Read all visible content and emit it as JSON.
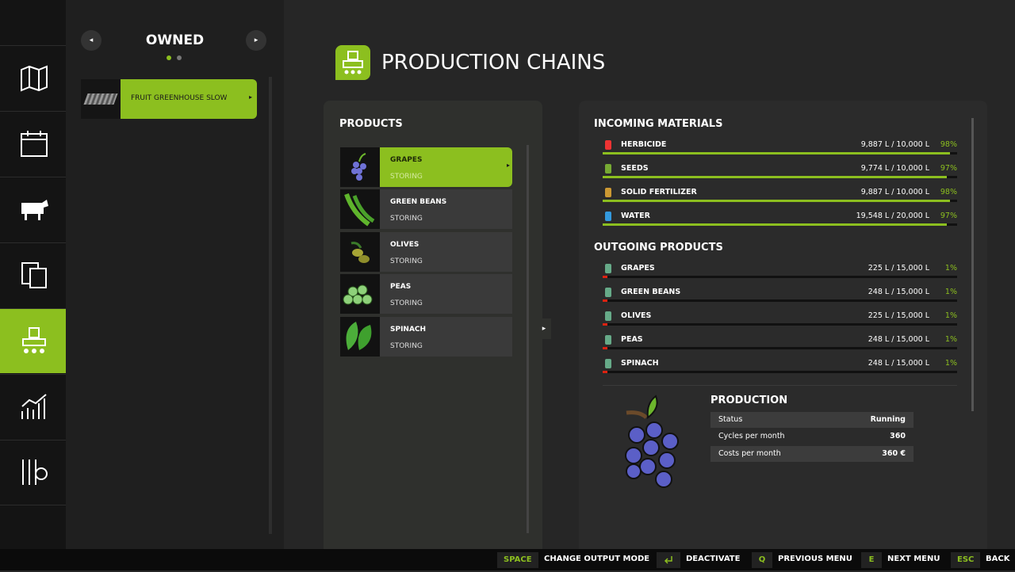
{
  "sidebar": {
    "header": "OWNED",
    "items": [
      "FRUIT GREENHOUSE SLOW"
    ]
  },
  "title": "PRODUCTION CHAINS",
  "products": {
    "heading": "PRODUCTS",
    "items": [
      {
        "name": "GRAPES",
        "status": "STORING"
      },
      {
        "name": "GREEN BEANS",
        "status": "STORING"
      },
      {
        "name": "OLIVES",
        "status": "STORING"
      },
      {
        "name": "PEAS",
        "status": "STORING"
      },
      {
        "name": "SPINACH",
        "status": "STORING"
      }
    ]
  },
  "incoming": {
    "heading": "INCOMING MATERIALS",
    "items": [
      {
        "name": "HERBICIDE",
        "amount": "9,887 L / 10,000 L",
        "percent": "98%"
      },
      {
        "name": "SEEDS",
        "amount": "9,774 L / 10,000 L",
        "percent": "97%"
      },
      {
        "name": "SOLID FERTILIZER",
        "amount": "9,887 L / 10,000 L",
        "percent": "98%"
      },
      {
        "name": "WATER",
        "amount": "19,548 L / 20,000 L",
        "percent": "97%"
      }
    ]
  },
  "outgoing": {
    "heading": "OUTGOING PRODUCTS",
    "items": [
      {
        "name": "GRAPES",
        "amount": "225 L / 15,000 L",
        "percent": "1%"
      },
      {
        "name": "GREEN BEANS",
        "amount": "248 L / 15,000 L",
        "percent": "1%"
      },
      {
        "name": "OLIVES",
        "amount": "225 L / 15,000 L",
        "percent": "1%"
      },
      {
        "name": "PEAS",
        "amount": "248 L / 15,000 L",
        "percent": "1%"
      },
      {
        "name": "SPINACH",
        "amount": "248 L / 15,000 L",
        "percent": "1%"
      }
    ]
  },
  "production": {
    "heading": "PRODUCTION",
    "rows": [
      [
        "Status",
        "Running"
      ],
      [
        "Cycles per month",
        "360"
      ],
      [
        "Costs per month",
        "360 €"
      ]
    ]
  },
  "footer": [
    {
      "key": "SPACE",
      "label": "CHANGE OUTPUT MODE"
    },
    {
      "key": null,
      "label": "DEACTIVATE"
    },
    {
      "key": "Q",
      "label": "PREVIOUS MENU"
    },
    {
      "key": "E",
      "label": "NEXT MENU"
    },
    {
      "key": "ESC",
      "label": "BACK"
    }
  ]
}
